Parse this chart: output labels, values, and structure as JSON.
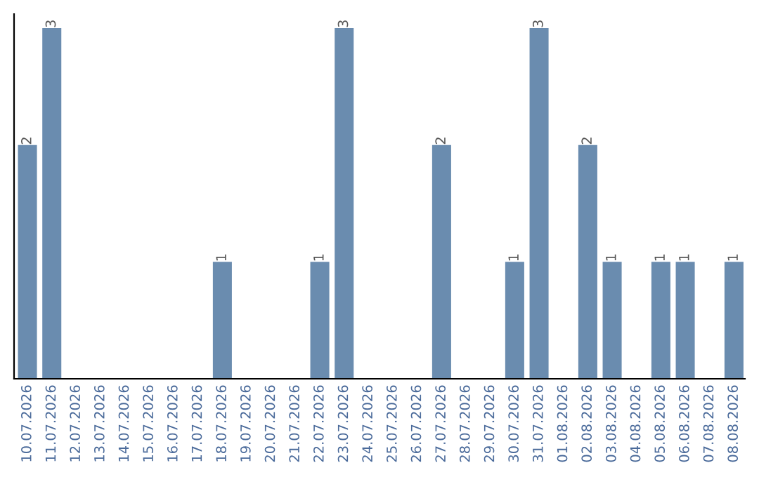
{
  "chart_data": {
    "type": "bar",
    "categories": [
      "10.07.2026",
      "11.07.2026",
      "12.07.2026",
      "13.07.2026",
      "14.07.2026",
      "15.07.2026",
      "16.07.2026",
      "17.07.2026",
      "18.07.2026",
      "19.07.2026",
      "20.07.2026",
      "21.07.2026",
      "22.07.2026",
      "23.07.2026",
      "24.07.2026",
      "25.07.2026",
      "26.07.2026",
      "27.07.2026",
      "28.07.2026",
      "29.07.2026",
      "30.07.2026",
      "31.07.2026",
      "01.08.2026",
      "02.08.2026",
      "03.08.2026",
      "04.08.2026",
      "05.08.2026",
      "06.08.2026",
      "07.08.2026",
      "08.08.2026"
    ],
    "values": [
      2,
      3,
      0,
      0,
      0,
      0,
      0,
      0,
      1,
      0,
      0,
      0,
      1,
      3,
      0,
      0,
      0,
      2,
      0,
      0,
      1,
      3,
      0,
      2,
      1,
      0,
      1,
      1,
      0,
      1
    ],
    "value_labels": [
      "2",
      "3",
      null,
      null,
      null,
      null,
      null,
      null,
      "1",
      null,
      null,
      null,
      "1",
      "3",
      null,
      null,
      null,
      "2",
      null,
      null,
      "1",
      "3",
      null,
      "2",
      "1",
      null,
      "1",
      "1",
      null,
      "1"
    ],
    "color": "#6a8caf",
    "tick_labels": "x",
    "grid": false,
    "legend": false
  }
}
